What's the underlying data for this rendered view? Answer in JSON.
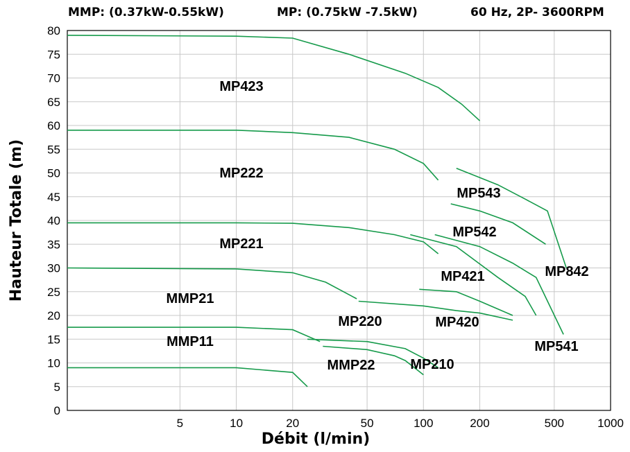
{
  "header": {
    "mmp": "MMP: (0.37kW-0.55kW)",
    "mp": "MP: (0.75kW -7.5kW)",
    "freq": "60 Hz, 2P- 3600RPM"
  },
  "chart_data": {
    "type": "line",
    "xlabel": "Débit (l/min)",
    "ylabel": "Hauteur Totale (m)",
    "xscale": "log",
    "xlim": [
      1.25,
      1000
    ],
    "ylim": [
      0,
      80
    ],
    "xticks": [
      5,
      10,
      20,
      50,
      100,
      200,
      500,
      1000
    ],
    "yticks": [
      0,
      5,
      10,
      15,
      20,
      25,
      30,
      35,
      40,
      45,
      50,
      55,
      60,
      65,
      70,
      75,
      80
    ],
    "grid": true,
    "line_color": "#159a4a",
    "series": [
      {
        "name": "MP423",
        "x": [
          1.25,
          10,
          20,
          40,
          80,
          120,
          160,
          200
        ],
        "y": [
          79,
          78.8,
          78.4,
          75,
          71,
          68,
          64.5,
          61
        ]
      },
      {
        "name": "MP222",
        "x": [
          1.25,
          10,
          20,
          40,
          70,
          100,
          120
        ],
        "y": [
          59,
          59,
          58.5,
          57.5,
          55,
          52,
          48.5
        ]
      },
      {
        "name": "MP221",
        "x": [
          1.25,
          10,
          20,
          40,
          70,
          100,
          120
        ],
        "y": [
          39.5,
          39.5,
          39.4,
          38.5,
          37,
          35.5,
          33
        ]
      },
      {
        "name": "MMP21",
        "x": [
          1.25,
          10,
          20,
          30,
          44
        ],
        "y": [
          30,
          29.8,
          29,
          27,
          23.5
        ]
      },
      {
        "name": "MMP11",
        "x": [
          1.25,
          10,
          20,
          28
        ],
        "y": [
          17.5,
          17.5,
          17,
          14.5
        ]
      },
      {
        "name": "MMP22",
        "x": [
          1.25,
          10,
          20,
          24
        ],
        "y": [
          9,
          9,
          8,
          5
        ]
      },
      {
        "name": "MP220",
        "x": [
          24,
          50,
          80,
          100,
          120
        ],
        "y": [
          15,
          14.5,
          13,
          11,
          9
        ]
      },
      {
        "name": "MP210",
        "x": [
          29,
          50,
          70,
          80,
          100
        ],
        "y": [
          13.5,
          12.8,
          11.5,
          10.5,
          7.5
        ]
      },
      {
        "name": "MP420",
        "x": [
          45,
          100,
          150,
          200,
          300
        ],
        "y": [
          23,
          22,
          21,
          20.5,
          19
        ]
      },
      {
        "name": "MP421",
        "x": [
          95,
          150,
          200,
          300
        ],
        "y": [
          25.5,
          25,
          23,
          20
        ]
      },
      {
        "name": "MP542",
        "x": [
          85,
          150,
          250,
          350,
          400
        ],
        "y": [
          37,
          34.5,
          28,
          24,
          20
        ]
      },
      {
        "name": "MP541",
        "x": [
          115,
          200,
          300,
          400,
          560
        ],
        "y": [
          37,
          34.5,
          31,
          28,
          16
        ]
      },
      {
        "name": "MP543",
        "x": [
          140,
          200,
          300,
          450
        ],
        "y": [
          43.5,
          42,
          39.5,
          35
        ]
      },
      {
        "name": "MP842",
        "x": [
          150,
          250,
          350,
          460,
          580
        ],
        "y": [
          51,
          47.5,
          44.5,
          42,
          30
        ]
      }
    ],
    "annotations": [
      "MP423",
      "MP222",
      "MP221",
      "MMP21",
      "MMP11",
      "MMP22",
      "MP220",
      "MP210",
      "MP420",
      "MP421",
      "MP542",
      "MP541",
      "MP543",
      "MP842"
    ]
  }
}
